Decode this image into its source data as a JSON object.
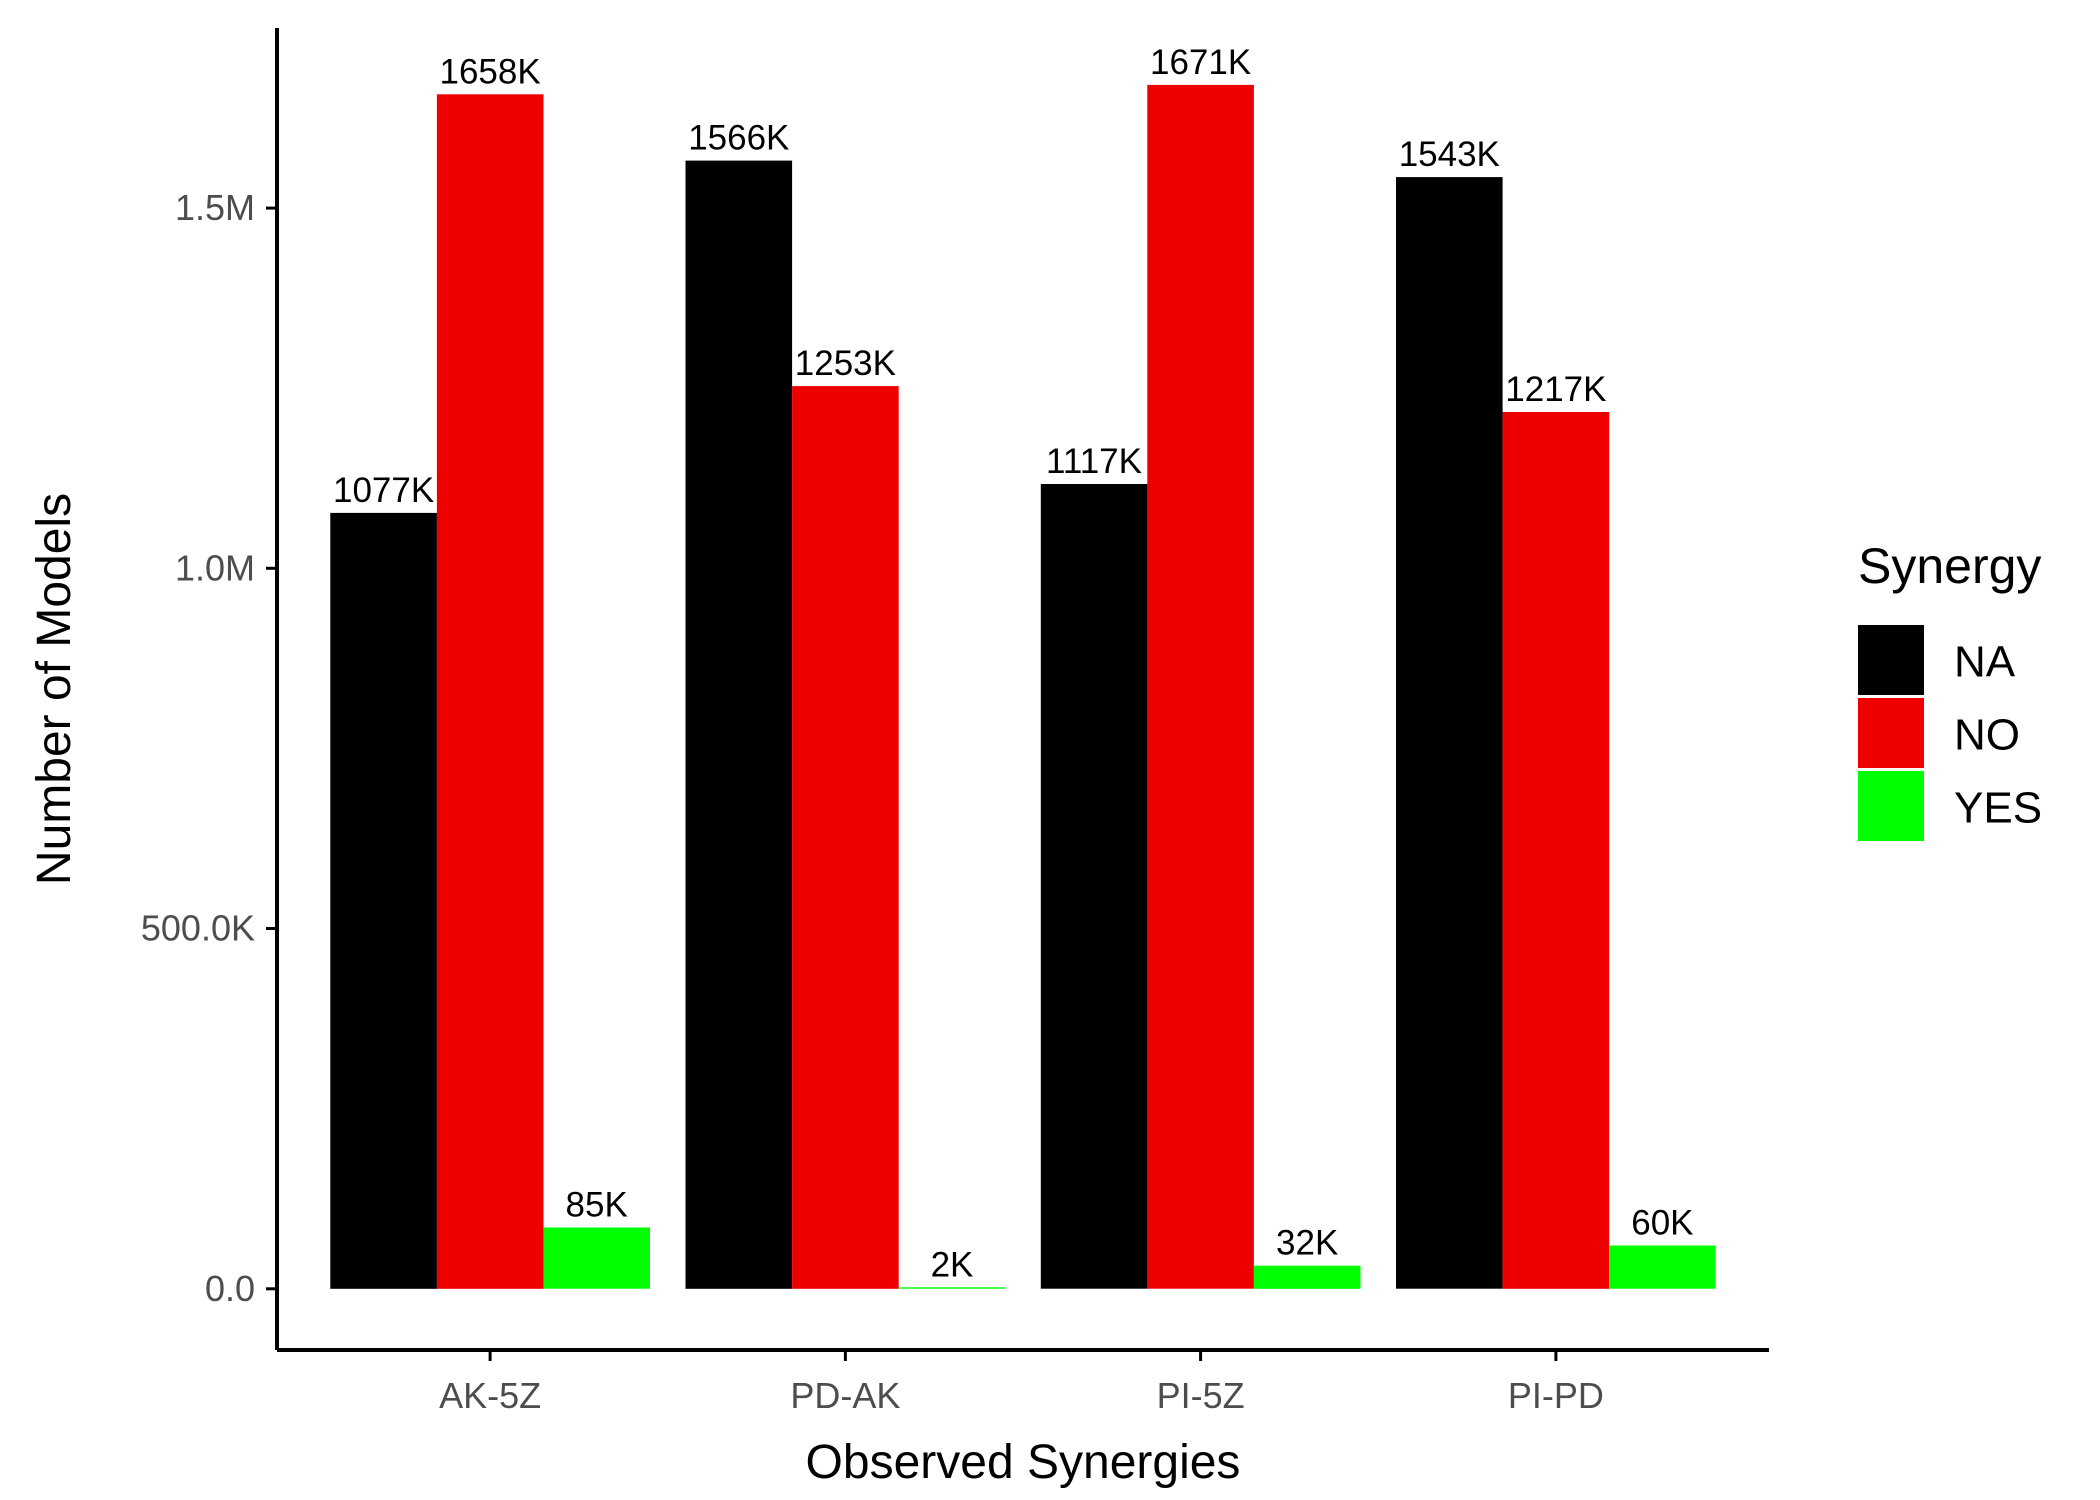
{
  "chart_data": {
    "type": "bar",
    "xlabel": "Observed Synergies",
    "ylabel": "Number of Models",
    "categories": [
      "AK-5Z",
      "PD-AK",
      "PI-5Z",
      "PI-PD"
    ],
    "series": [
      {
        "name": "NA",
        "color": "#000000",
        "values": [
          1077000,
          1566000,
          1117000,
          1543000
        ],
        "labels": [
          "1077K",
          "1566K",
          "1117K",
          "1543K"
        ]
      },
      {
        "name": "NO",
        "color": "#ee0000",
        "values": [
          1658000,
          1253000,
          1671000,
          1217000
        ],
        "labels": [
          "1658K",
          "1253K",
          "1671K",
          "1217K"
        ]
      },
      {
        "name": "YES",
        "color": "#00ff00",
        "values": [
          85000,
          2000,
          32000,
          60000
        ],
        "labels": [
          "85K",
          "2K",
          "32K",
          "60K"
        ]
      }
    ],
    "yticks": [
      0,
      500000,
      1000000,
      1500000
    ],
    "ytick_labels": [
      "0.0",
      "500.0K",
      "1.0M",
      "1.5M"
    ],
    "ylim": [
      -85000,
      1750000
    ],
    "legend": {
      "title": "Synergy",
      "position": "right"
    },
    "grid": false
  }
}
